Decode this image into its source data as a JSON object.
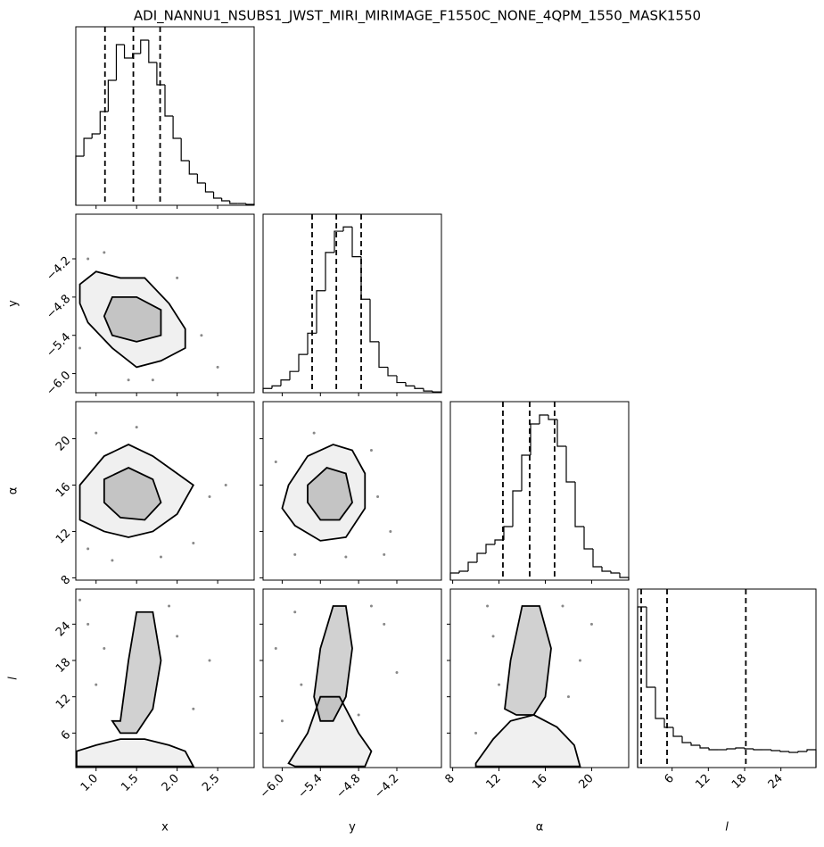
{
  "chart_data": {
    "type": "corner",
    "title": "ADI_NANNU1_NSUBS1_JWST_MIRI_MIRIMAGE_F1550C_NONE_4QPM_1550_MASK1550",
    "params": [
      {
        "label": "x",
        "lim": [
          0.75,
          2.95
        ],
        "ticks": [
          {
            "value": 1.0,
            "label": "1.0"
          },
          1.5,
          {
            "value": 2.0,
            "label": "2.0"
          },
          2.5
        ]
      },
      {
        "label": "y",
        "lim": [
          -6.3,
          -3.5
        ],
        "ticks": [
          {
            "value": -6.0,
            "label": "−6.0"
          },
          {
            "value": -5.4,
            "label": "−5.4"
          },
          {
            "value": -4.8,
            "label": "−4.8"
          },
          {
            "value": -4.2,
            "label": "−4.2"
          }
        ]
      },
      {
        "label": "α",
        "lim": [
          7.8,
          23.2
        ],
        "ticks": [
          8,
          12,
          16,
          20
        ]
      },
      {
        "label": "l",
        "lim": [
          0.3,
          29.8
        ],
        "ticks": [
          6,
          12,
          18,
          24
        ]
      }
    ],
    "hists": [
      {
        "bins": [
          0.75,
          0.85,
          0.95,
          1.05,
          1.15,
          1.25,
          1.35,
          1.45,
          1.55,
          1.65,
          1.75,
          1.85,
          1.95,
          2.05,
          2.15,
          2.25,
          2.35,
          2.45,
          2.55,
          2.65,
          2.75,
          2.85,
          2.95
        ],
        "counts": [
          55,
          75,
          80,
          105,
          140,
          180,
          165,
          170,
          185,
          160,
          135,
          100,
          75,
          50,
          35,
          25,
          15,
          8,
          5,
          2,
          2,
          1
        ],
        "quantiles": [
          1.11,
          1.46,
          1.79
        ],
        "ylim": [
          0,
          200
        ]
      },
      {
        "bins": [
          -6.3,
          -6.16,
          -6.02,
          -5.88,
          -5.74,
          -5.6,
          -5.46,
          -5.32,
          -5.18,
          -5.04,
          -4.9,
          -4.76,
          -4.62,
          -4.48,
          -4.34,
          -4.2,
          -4.06,
          -3.92,
          -3.78,
          -3.64,
          -3.5
        ],
        "counts": [
          5,
          8,
          15,
          25,
          45,
          70,
          120,
          165,
          190,
          195,
          160,
          110,
          60,
          30,
          20,
          12,
          8,
          5,
          2,
          1
        ],
        "quantiles": [
          -5.53,
          -5.15,
          -4.76
        ],
        "ylim": [
          0,
          210
        ]
      },
      {
        "bins": [
          7.8,
          8.57,
          9.34,
          10.11,
          10.88,
          11.65,
          12.42,
          13.19,
          13.96,
          14.73,
          15.5,
          16.27,
          17.04,
          17.81,
          18.58,
          19.35,
          20.12,
          20.89,
          21.66,
          22.43,
          23.2
        ],
        "counts": [
          8,
          10,
          20,
          30,
          40,
          45,
          60,
          100,
          140,
          175,
          185,
          180,
          150,
          110,
          60,
          35,
          15,
          10,
          8,
          3
        ],
        "quantiles": [
          12.34,
          14.65,
          16.8
        ],
        "ylim": [
          0,
          200
        ]
      },
      {
        "bins": [
          0.3,
          1.775,
          3.25,
          4.725,
          6.2,
          7.675,
          9.15,
          10.625,
          12.1,
          13.575,
          15.05,
          16.525,
          18.0,
          19.475,
          20.95,
          22.425,
          23.9,
          25.375,
          26.85,
          28.325,
          29.8
        ],
        "counts": [
          180,
          90,
          55,
          45,
          35,
          28,
          25,
          22,
          20,
          20,
          21,
          22,
          21,
          20,
          20,
          19,
          18,
          17,
          18,
          20
        ],
        "quantiles": [
          0.89,
          5.17,
          18.2
        ],
        "ylim": [
          0,
          200
        ]
      }
    ],
    "pairs": [
      {
        "contours": [
          {
            "x": [
              0.8,
              1.0,
              1.3,
              1.6,
              1.9,
              2.1,
              2.1,
              1.8,
              1.5,
              1.2,
              0.9,
              0.8
            ],
            "y": [
              -4.6,
              -4.4,
              -4.5,
              -4.5,
              -4.9,
              -5.3,
              -5.6,
              -5.8,
              -5.9,
              -5.6,
              -5.2,
              -4.9
            ]
          },
          {
            "x": [
              1.2,
              1.5,
              1.8,
              1.8,
              1.5,
              1.2,
              1.1
            ],
            "y": [
              -4.8,
              -4.8,
              -5.0,
              -5.4,
              -5.5,
              -5.4,
              -5.1
            ]
          }
        ],
        "points": {
          "x": [
            0.9,
            1.1,
            2.3,
            2.5,
            1.7,
            1.4,
            2.0,
            0.8
          ],
          "y": [
            -4.2,
            -4.1,
            -5.4,
            -5.9,
            -6.1,
            -6.1,
            -4.5,
            -5.6
          ]
        }
      },
      {
        "contours": [
          {
            "x": [
              0.8,
              1.1,
              1.4,
              1.7,
              2.0,
              2.2,
              2.0,
              1.7,
              1.4,
              1.1,
              0.8
            ],
            "y": [
              16,
              18.5,
              19.5,
              18.5,
              17,
              16,
              13.5,
              12,
              11.5,
              12,
              13
            ]
          },
          {
            "x": [
              1.1,
              1.4,
              1.7,
              1.8,
              1.6,
              1.3,
              1.1
            ],
            "y": [
              16.5,
              17.5,
              16.5,
              14.5,
              13,
              13.2,
              14.5
            ]
          }
        ],
        "points": {
          "x": [
            1.0,
            1.5,
            2.4,
            2.6,
            1.2,
            1.8,
            0.9,
            2.2
          ],
          "y": [
            20.5,
            21,
            15,
            16,
            9.5,
            9.8,
            10.5,
            11
          ]
        }
      },
      {
        "contours": [
          {
            "x": [
              -5.9,
              -5.6,
              -5.2,
              -4.9,
              -4.7,
              -4.7,
              -5.0,
              -5.4,
              -5.8,
              -6.0
            ],
            "y": [
              16,
              18.5,
              19.5,
              19,
              17,
              14,
              11.5,
              11.2,
              12.5,
              14
            ]
          },
          {
            "x": [
              -5.6,
              -5.3,
              -5.0,
              -4.9,
              -5.1,
              -5.4,
              -5.6
            ],
            "y": [
              16,
              17.5,
              17,
              14.5,
              13,
              13,
              14.5
            ]
          }
        ],
        "points": {
          "x": [
            -6.1,
            -5.5,
            -4.5,
            -4.3,
            -4.4,
            -5.8,
            -5.0,
            -4.6
          ],
          "y": [
            18,
            20.5,
            15,
            12,
            10,
            10,
            9.8,
            19
          ]
        }
      },
      {
        "contours": [
          {
            "x": [
              0.76,
              1.0,
              1.3,
              1.6,
              1.9,
              2.1,
              2.2,
              0.76
            ],
            "y": [
              3,
              4,
              5,
              5,
              4,
              3,
              0.5,
              0.5
            ]
          },
          {
            "x": [
              1.3,
              1.4,
              1.5,
              1.7,
              1.8,
              1.7,
              1.5,
              1.3,
              1.2
            ],
            "y": [
              8,
              18,
              26,
              26,
              18,
              10,
              6,
              6,
              8
            ]
          }
        ],
        "points": {
          "x": [
            0.9,
            1.1,
            2.0,
            2.4,
            1.0,
            2.2,
            0.8,
            1.9
          ],
          "y": [
            24,
            20,
            22,
            18,
            14,
            10,
            28,
            27
          ]
        }
      },
      {
        "contours": [
          {
            "x": [
              -5.9,
              -5.6,
              -5.4,
              -5.1,
              -4.8,
              -4.6,
              -4.7,
              -5.8
            ],
            "y": [
              1,
              6,
              12,
              12,
              6,
              3,
              0.5,
              0.5
            ]
          },
          {
            "x": [
              -5.5,
              -5.4,
              -5.2,
              -5.0,
              -4.9,
              -5.0,
              -5.2,
              -5.4
            ],
            "y": [
              12,
              20,
              27,
              27,
              20,
              12,
              8,
              8
            ]
          }
        ],
        "points": {
          "x": [
            -5.8,
            -6.1,
            -4.4,
            -4.2,
            -5.7,
            -4.6,
            -4.8,
            -6.0
          ],
          "y": [
            26,
            20,
            24,
            16,
            14,
            27,
            9,
            8
          ]
        }
      },
      {
        "contours": [
          {
            "x": [
              10,
              11.5,
              13,
              15,
              17,
              18.5,
              19,
              10
            ],
            "y": [
              1,
              5,
              8,
              9,
              7,
              4,
              0.5,
              0.5
            ]
          },
          {
            "x": [
              12.5,
              13,
              14,
              15.5,
              16.5,
              16,
              15,
              13.5
            ],
            "y": [
              10,
              18,
              27,
              27,
              20,
              12,
              9,
              9
            ]
          }
        ],
        "points": {
          "x": [
            11,
            11.5,
            19,
            20,
            12,
            18,
            10,
            17.5
          ],
          "y": [
            27,
            22,
            18,
            24,
            14,
            12,
            6,
            27
          ]
        }
      }
    ]
  }
}
